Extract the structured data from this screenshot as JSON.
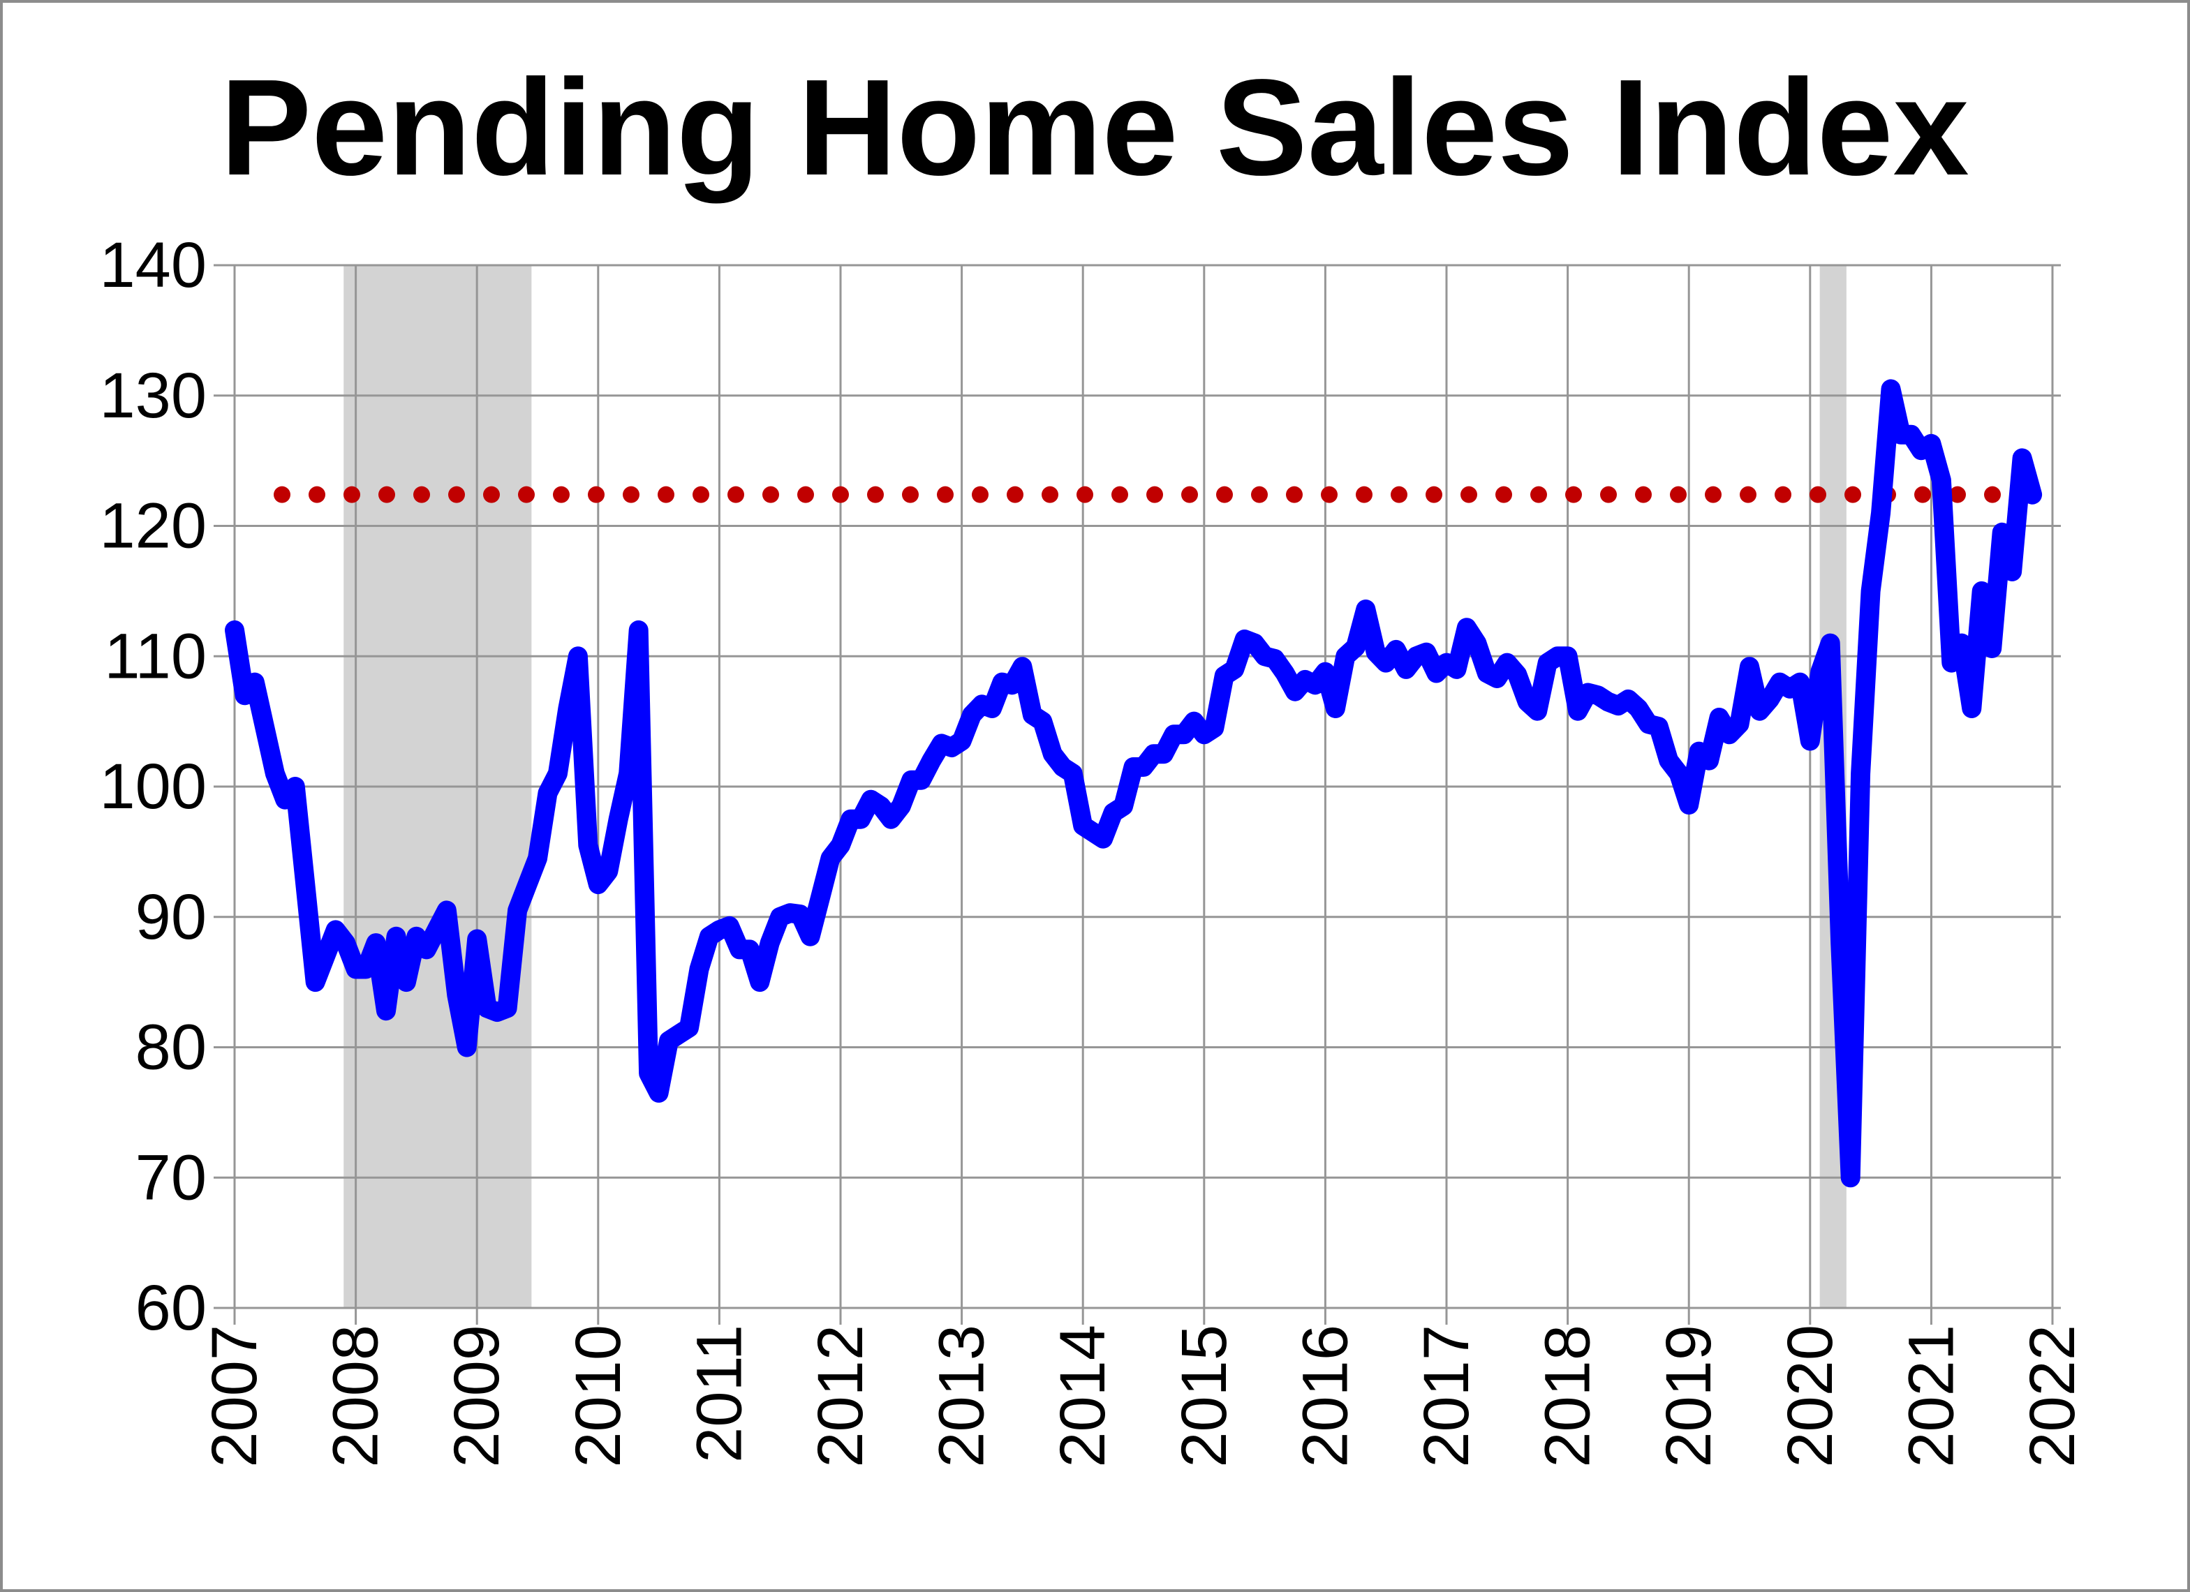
{
  "chart_data": {
    "type": "line",
    "title": "Pending Home Sales Index",
    "xlabel": "",
    "ylabel": "",
    "ylim": [
      60,
      140
    ],
    "xlim": [
      2007,
      2022
    ],
    "y_ticks": [
      "60",
      "70",
      "80",
      "90",
      "100",
      "110",
      "120",
      "130",
      "140"
    ],
    "x_ticks": [
      "2007",
      "2008",
      "2009",
      "2010",
      "2011",
      "2012",
      "2013",
      "2014",
      "2015",
      "2016",
      "2017",
      "2018",
      "2019",
      "2020",
      "2021",
      "2022"
    ],
    "grid": true,
    "legend": "none",
    "start_month": "2007-01",
    "series": [
      {
        "color": "#0000FF",
        "frequency": "monthly",
        "values": [
          112,
          107,
          108,
          104.5,
          101,
          99,
          100,
          92.5,
          85,
          87,
          89,
          88,
          86,
          86,
          88,
          82.8,
          88.5,
          85,
          88.5,
          87.5,
          89,
          90.5,
          84,
          80,
          88.3,
          83,
          82.7,
          83,
          90.5,
          92.5,
          94.5,
          99.5,
          101,
          106,
          110,
          95.5,
          92.5,
          93.5,
          97.5,
          101,
          112,
          78,
          76.5,
          80.5,
          81,
          81.5,
          86,
          88.5,
          89,
          89.3,
          87.5,
          87.5,
          85,
          88,
          90,
          90.3,
          90.2,
          88.5,
          91.5,
          94.5,
          95.5,
          97.5,
          97.5,
          99,
          98.5,
          97.5,
          98.5,
          100.5,
          100.5,
          102,
          103.3,
          103,
          103.5,
          105.5,
          106.3,
          106,
          108,
          107.8,
          109.2,
          105.5,
          105,
          102.5,
          101.5,
          101,
          97,
          96.5,
          96,
          98,
          98.5,
          101.5,
          101.5,
          102.5,
          102.5,
          104,
          104,
          105,
          104,
          104.5,
          108.5,
          109,
          111.3,
          111,
          110,
          109.8,
          108.7,
          107.3,
          108.2,
          107.8,
          108.8,
          106,
          110,
          110.7,
          113.6,
          110.3,
          109.5,
          110.5,
          109,
          110,
          110.3,
          108.7,
          109.5,
          109,
          112.2,
          111,
          108.7,
          108.3,
          109.5,
          108.6,
          106.5,
          105.8,
          109.5,
          110,
          110,
          105.8,
          107.2,
          107,
          106.5,
          106.2,
          106.7,
          106,
          104.8,
          104.6,
          102,
          101,
          98.6,
          102.7,
          102,
          105.3,
          104,
          104.8,
          109.2,
          105.8,
          106.7,
          108,
          107.5,
          108,
          103.5,
          108.8,
          111,
          88,
          70,
          101,
          115,
          121,
          130.5,
          127,
          127,
          125.8,
          126.3,
          123.5,
          109.5,
          111,
          106,
          115,
          110.6,
          119.5,
          116.5,
          125.2,
          122.4
        ]
      }
    ],
    "reference_line": {
      "value": 122.4,
      "color": "#C00000",
      "style": "dotted"
    },
    "shaded_periods": [
      {
        "start": 2007.9,
        "end": 2009.45,
        "color": "#D3D3D3"
      },
      {
        "start": 2020.08,
        "end": 2020.3,
        "color": "#D3D3D3"
      }
    ]
  }
}
